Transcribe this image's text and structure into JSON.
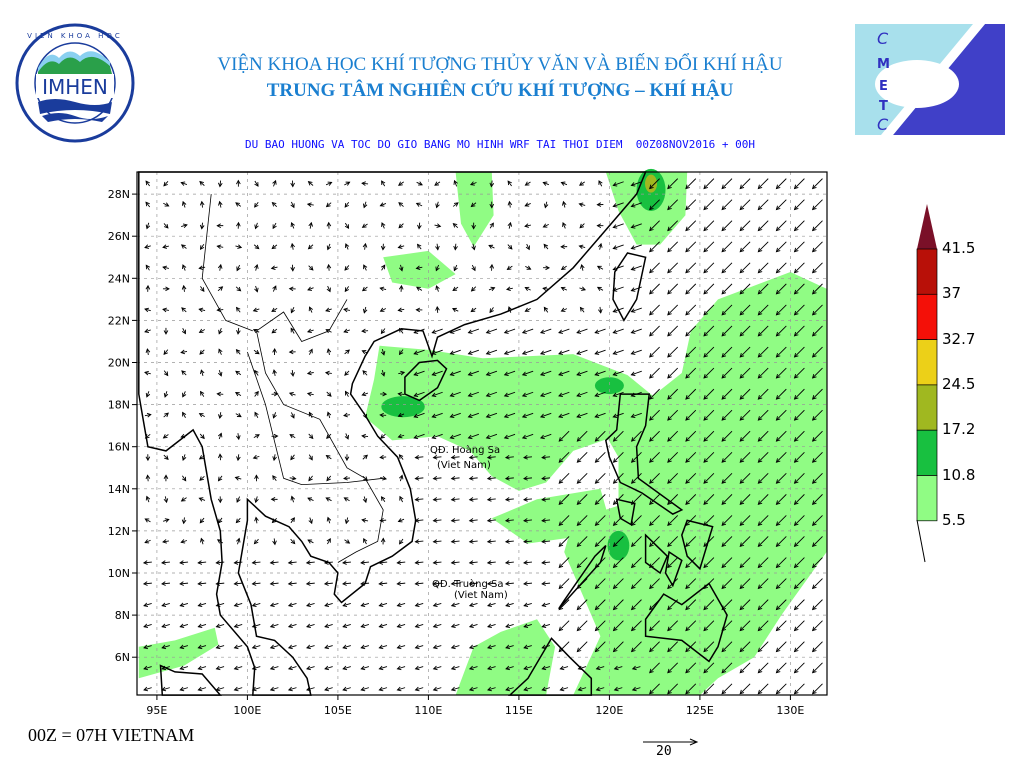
{
  "header": {
    "institute": "VIỆN KHOA HỌC KHÍ TƯỢNG THỦY VĂN VÀ BIẾN ĐỔI KHÍ HẬU",
    "center": "TRUNG TÂM NGHIÊN CỨU KHÍ TƯỢNG – KHÍ HẬU",
    "subtitle": "DU BAO HUONG VA TOC DO GIO BANG MO HINH WRF TAI THOI DIEM  00Z08NOV2016 + 00H"
  },
  "logos": {
    "left": {
      "text": "IMHEN",
      "ring_top": "VIỆN KHOA HỌC",
      "ring_bottom": "KHÍ TƯỢNG THỦY VĂN VÀ BIẾN ĐỔI KHÍ HẬU"
    },
    "right": {
      "text": "CMETC"
    }
  },
  "map": {
    "lon_ticks": [
      "95E",
      "100E",
      "105E",
      "110E",
      "115E",
      "120E",
      "125E",
      "130E"
    ],
    "lat_ticks": [
      "28N",
      "26N",
      "24N",
      "22N",
      "20N",
      "18N",
      "16N",
      "14N",
      "12N",
      "10N",
      "8N",
      "6N"
    ],
    "labels": {
      "hoang_sa_1": "QĐ. Hoàng Sa",
      "hoang_sa_2": "(Viet Nam)",
      "truong_sa_1": "QĐ. Truòng Sa",
      "truong_sa_2": "(Viet Nam)"
    }
  },
  "legend": {
    "levels": [
      "41.5",
      "37",
      "32.7",
      "24.5",
      "17.2",
      "10.8",
      "5.5"
    ],
    "colors": [
      "#7a1028",
      "#b81008",
      "#f41008",
      "#ecd018",
      "#a0b820",
      "#18c040",
      "#90fc84"
    ]
  },
  "reference_vector": {
    "value": "20"
  },
  "footnote": "00Z = 07H VIETNAM"
}
